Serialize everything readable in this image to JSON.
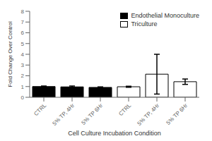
{
  "chart_data": {
    "type": "bar",
    "xlabel": "Cell Culture  Incubation Condition",
    "ylabel": "Fold Change Over Control",
    "categories": [
      "CTRL",
      "5% TP, 4Hr",
      "5% TP 6Hr",
      "CTRL",
      "5% TP, 4Hr",
      "5% TP 6Hr"
    ],
    "series": [
      {
        "name": "Endothelial Monoculture",
        "color": "#000000",
        "values": [
          1.0,
          0.97,
          0.92,
          null,
          null,
          null
        ],
        "errors": [
          0.05,
          0.08,
          0.05,
          null,
          null,
          null
        ]
      },
      {
        "name": "Triculture",
        "color": "#ffffff",
        "values": [
          null,
          null,
          null,
          0.98,
          2.15,
          1.45
        ],
        "errors": [
          null,
          null,
          null,
          0.05,
          1.85,
          0.25
        ]
      }
    ],
    "ylim": [
      0,
      8
    ],
    "yticks": [
      0,
      1,
      2,
      3,
      4,
      5,
      6,
      7,
      8
    ],
    "legend": "upper right"
  }
}
